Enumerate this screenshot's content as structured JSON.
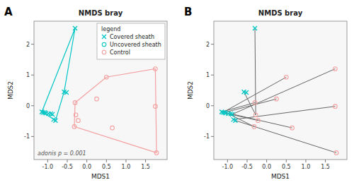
{
  "chart_data": [
    {
      "type": "scatter",
      "title": "NMDS bray",
      "panel_label": "A",
      "xlabel": "MDS1",
      "ylabel": "MDS2",
      "annotations": [
        "adonis p = 0.001"
      ],
      "legend": "upper right",
      "legend_title": "legend",
      "grid": false,
      "xlim": [
        -1.35,
        2.05
      ],
      "ylim": [
        -1.75,
        2.75
      ],
      "xticks": [
        {
          "value": -1.0,
          "label": "-1.0"
        },
        -0.5,
        {
          "value": 0.0,
          "label": "0.0"
        },
        0.5,
        {
          "value": 1.0,
          "label": "1.0"
        },
        1.5
      ],
      "yticks": [
        -1,
        0,
        1,
        2
      ],
      "series": [
        {
          "name": "Covered sheath",
          "color": "#00C5C5",
          "marker": "x",
          "x": [
            -0.3,
            -0.58,
            -0.52,
            -1.15,
            -1.12,
            -1.08,
            -1.05,
            -0.98,
            -0.92,
            -0.88,
            -0.85,
            -0.8
          ],
          "values": [
            2.52,
            0.45,
            0.43,
            -0.2,
            -0.22,
            -0.22,
            -0.24,
            -0.26,
            -0.26,
            -0.28,
            -0.45,
            -0.48
          ]
        },
        {
          "name": "Uncovered sheath",
          "color": "#00C5C5",
          "marker": "circle",
          "x": [],
          "values": []
        },
        {
          "name": "Control",
          "color": "#F4A0A0",
          "marker": "circle",
          "x": [
            -0.3,
            0.5,
            0.25,
            -0.28,
            -0.22,
            -0.32,
            0.65,
            1.75,
            1.75,
            1.78
          ],
          "values": [
            0.1,
            0.93,
            0.22,
            -0.3,
            -0.48,
            -0.68,
            -0.72,
            1.2,
            -0.02,
            -1.53
          ]
        }
      ],
      "hulls": [
        {
          "color": "#00C5C5",
          "x": [
            -1.15,
            -0.3,
            -0.58,
            -0.8,
            -1.15
          ],
          "values": [
            -0.2,
            2.52,
            0.45,
            -0.48,
            -0.2
          ]
        },
        {
          "color": "#F4A0A0",
          "x": [
            -0.3,
            0.5,
            1.75,
            1.78,
            -0.32,
            -0.3
          ],
          "values": [
            0.1,
            0.93,
            1.2,
            -1.53,
            -0.68,
            0.1
          ]
        }
      ]
    },
    {
      "type": "scatter",
      "title": "NMDS bray",
      "panel_label": "B",
      "xlabel": "MDS1",
      "ylabel": "MDS2",
      "grid": false,
      "xlim": [
        -1.35,
        2.05
      ],
      "ylim": [
        -1.75,
        2.75
      ],
      "xticks": [
        {
          "value": -1.0,
          "label": "-1.0"
        },
        -0.5,
        {
          "value": 0.0,
          "label": "0.0"
        },
        0.5,
        {
          "value": 1.0,
          "label": "1.0"
        },
        1.5
      ],
      "yticks": [
        -1,
        0,
        1,
        2
      ],
      "series": [
        {
          "color": "#00C5C5",
          "marker": "x",
          "x": [
            -0.3,
            -0.58,
            -0.52,
            -1.15,
            -1.12,
            -1.08,
            -1.05,
            -0.98,
            -0.92,
            -0.88,
            -0.85,
            -0.8
          ],
          "values": [
            2.52,
            0.45,
            0.43,
            -0.2,
            -0.22,
            -0.22,
            -0.24,
            -0.26,
            -0.26,
            -0.28,
            -0.45,
            -0.48
          ]
        },
        {
          "color": "#F4A0A0",
          "marker": "circle",
          "x": [
            -0.3,
            0.5,
            0.25,
            -0.28,
            -0.22,
            -0.32,
            0.65,
            1.75,
            1.75,
            1.78
          ],
          "values": [
            0.1,
            0.93,
            0.22,
            -0.3,
            -0.48,
            -0.68,
            -0.72,
            1.2,
            -0.02,
            -1.53
          ]
        }
      ],
      "segments": {
        "color": "#666666",
        "x1": [
          -1.15,
          -1.12,
          -1.08,
          -1.05,
          -0.98,
          -0.92,
          -0.88,
          -0.85,
          -0.8,
          -0.58,
          -0.3
        ],
        "y1": [
          -0.2,
          -0.22,
          -0.22,
          -0.24,
          -0.26,
          -0.26,
          -0.28,
          -0.45,
          -0.48,
          0.45,
          2.52
        ],
        "x2": [
          -0.3,
          0.5,
          0.25,
          -0.22,
          -0.32,
          0.65,
          1.75,
          1.75,
          1.78,
          -0.28,
          -0.28
        ],
        "y2": [
          0.1,
          0.93,
          0.22,
          -0.48,
          -0.68,
          -0.72,
          1.2,
          -0.02,
          -1.53,
          -0.3,
          -0.3
        ]
      }
    }
  ]
}
